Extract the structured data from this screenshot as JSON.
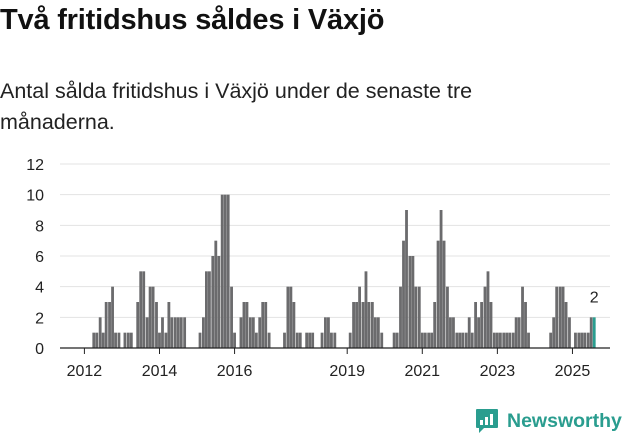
{
  "title": "Två fritidshus såldes i Växjö",
  "subtitle": "Antal sålda fritidshus i Växjö under de senaste tre månaderna.",
  "brand": {
    "name": "Newsworthy"
  },
  "colors": {
    "bar": "#6b6b6d",
    "highlight": "#2a9d8f",
    "grid": "#e3e3e3",
    "axis": "#222222",
    "text": "#222222"
  },
  "chart_data": {
    "type": "bar",
    "title": "",
    "xlabel": "",
    "ylabel": "",
    "ylim": [
      0,
      12
    ],
    "yticks": [
      0,
      2,
      4,
      6,
      8,
      10,
      12
    ],
    "xticks": [
      2012,
      2014,
      2016,
      2019,
      2021,
      2023,
      2025
    ],
    "xlim": [
      2011.35,
      2026.0
    ],
    "grid": true,
    "last_value_label": "2",
    "bar_width_years": 0.075,
    "bars": [
      {
        "x": 2012.25,
        "value": 1
      },
      {
        "x": 2012.33,
        "value": 1
      },
      {
        "x": 2012.42,
        "value": 2
      },
      {
        "x": 2012.5,
        "value": 1
      },
      {
        "x": 2012.58,
        "value": 3
      },
      {
        "x": 2012.67,
        "value": 3
      },
      {
        "x": 2012.75,
        "value": 4
      },
      {
        "x": 2012.83,
        "value": 1
      },
      {
        "x": 2012.92,
        "value": 1
      },
      {
        "x": 2013.08,
        "value": 1
      },
      {
        "x": 2013.17,
        "value": 1
      },
      {
        "x": 2013.25,
        "value": 1
      },
      {
        "x": 2013.42,
        "value": 3
      },
      {
        "x": 2013.5,
        "value": 5
      },
      {
        "x": 2013.58,
        "value": 5
      },
      {
        "x": 2013.67,
        "value": 2
      },
      {
        "x": 2013.75,
        "value": 4
      },
      {
        "x": 2013.83,
        "value": 4
      },
      {
        "x": 2013.92,
        "value": 3
      },
      {
        "x": 2014.0,
        "value": 1
      },
      {
        "x": 2014.08,
        "value": 2
      },
      {
        "x": 2014.17,
        "value": 1
      },
      {
        "x": 2014.25,
        "value": 3
      },
      {
        "x": 2014.33,
        "value": 2
      },
      {
        "x": 2014.42,
        "value": 2
      },
      {
        "x": 2014.5,
        "value": 2
      },
      {
        "x": 2014.58,
        "value": 2
      },
      {
        "x": 2014.67,
        "value": 2
      },
      {
        "x": 2015.08,
        "value": 1
      },
      {
        "x": 2015.17,
        "value": 2
      },
      {
        "x": 2015.25,
        "value": 5
      },
      {
        "x": 2015.33,
        "value": 5
      },
      {
        "x": 2015.42,
        "value": 6
      },
      {
        "x": 2015.5,
        "value": 7
      },
      {
        "x": 2015.58,
        "value": 6
      },
      {
        "x": 2015.67,
        "value": 10
      },
      {
        "x": 2015.75,
        "value": 10
      },
      {
        "x": 2015.83,
        "value": 10
      },
      {
        "x": 2015.92,
        "value": 4
      },
      {
        "x": 2016.0,
        "value": 1
      },
      {
        "x": 2016.17,
        "value": 2
      },
      {
        "x": 2016.25,
        "value": 3
      },
      {
        "x": 2016.33,
        "value": 3
      },
      {
        "x": 2016.42,
        "value": 2
      },
      {
        "x": 2016.5,
        "value": 2
      },
      {
        "x": 2016.58,
        "value": 1
      },
      {
        "x": 2016.67,
        "value": 2
      },
      {
        "x": 2016.75,
        "value": 3
      },
      {
        "x": 2016.83,
        "value": 3
      },
      {
        "x": 2016.92,
        "value": 1
      },
      {
        "x": 2017.33,
        "value": 1
      },
      {
        "x": 2017.42,
        "value": 4
      },
      {
        "x": 2017.5,
        "value": 4
      },
      {
        "x": 2017.58,
        "value": 3
      },
      {
        "x": 2017.67,
        "value": 1
      },
      {
        "x": 2017.75,
        "value": 1
      },
      {
        "x": 2017.92,
        "value": 1
      },
      {
        "x": 2018.0,
        "value": 1
      },
      {
        "x": 2018.08,
        "value": 1
      },
      {
        "x": 2018.33,
        "value": 1
      },
      {
        "x": 2018.42,
        "value": 2
      },
      {
        "x": 2018.5,
        "value": 2
      },
      {
        "x": 2018.58,
        "value": 1
      },
      {
        "x": 2018.67,
        "value": 1
      },
      {
        "x": 2019.08,
        "value": 1
      },
      {
        "x": 2019.17,
        "value": 3
      },
      {
        "x": 2019.25,
        "value": 3
      },
      {
        "x": 2019.33,
        "value": 4
      },
      {
        "x": 2019.42,
        "value": 3
      },
      {
        "x": 2019.5,
        "value": 5
      },
      {
        "x": 2019.58,
        "value": 3
      },
      {
        "x": 2019.67,
        "value": 3
      },
      {
        "x": 2019.75,
        "value": 2
      },
      {
        "x": 2019.83,
        "value": 2
      },
      {
        "x": 2019.92,
        "value": 1
      },
      {
        "x": 2020.25,
        "value": 1
      },
      {
        "x": 2020.33,
        "value": 1
      },
      {
        "x": 2020.42,
        "value": 4
      },
      {
        "x": 2020.5,
        "value": 7
      },
      {
        "x": 2020.58,
        "value": 9
      },
      {
        "x": 2020.67,
        "value": 6
      },
      {
        "x": 2020.75,
        "value": 6
      },
      {
        "x": 2020.83,
        "value": 4
      },
      {
        "x": 2020.92,
        "value": 4
      },
      {
        "x": 2021.0,
        "value": 1
      },
      {
        "x": 2021.08,
        "value": 1
      },
      {
        "x": 2021.17,
        "value": 1
      },
      {
        "x": 2021.25,
        "value": 1
      },
      {
        "x": 2021.33,
        "value": 3
      },
      {
        "x": 2021.42,
        "value": 7
      },
      {
        "x": 2021.5,
        "value": 9
      },
      {
        "x": 2021.58,
        "value": 7
      },
      {
        "x": 2021.67,
        "value": 4
      },
      {
        "x": 2021.75,
        "value": 2
      },
      {
        "x": 2021.83,
        "value": 2
      },
      {
        "x": 2021.92,
        "value": 1
      },
      {
        "x": 2022.0,
        "value": 1
      },
      {
        "x": 2022.08,
        "value": 1
      },
      {
        "x": 2022.17,
        "value": 1
      },
      {
        "x": 2022.25,
        "value": 2
      },
      {
        "x": 2022.33,
        "value": 1
      },
      {
        "x": 2022.42,
        "value": 3
      },
      {
        "x": 2022.5,
        "value": 2
      },
      {
        "x": 2022.58,
        "value": 3
      },
      {
        "x": 2022.67,
        "value": 4
      },
      {
        "x": 2022.75,
        "value": 5
      },
      {
        "x": 2022.83,
        "value": 3
      },
      {
        "x": 2022.92,
        "value": 1
      },
      {
        "x": 2023.0,
        "value": 1
      },
      {
        "x": 2023.08,
        "value": 1
      },
      {
        "x": 2023.17,
        "value": 1
      },
      {
        "x": 2023.25,
        "value": 1
      },
      {
        "x": 2023.33,
        "value": 1
      },
      {
        "x": 2023.42,
        "value": 1
      },
      {
        "x": 2023.5,
        "value": 2
      },
      {
        "x": 2023.58,
        "value": 2
      },
      {
        "x": 2023.67,
        "value": 4
      },
      {
        "x": 2023.75,
        "value": 3
      },
      {
        "x": 2023.83,
        "value": 1
      },
      {
        "x": 2024.42,
        "value": 1
      },
      {
        "x": 2024.5,
        "value": 2
      },
      {
        "x": 2024.58,
        "value": 4
      },
      {
        "x": 2024.67,
        "value": 4
      },
      {
        "x": 2024.75,
        "value": 4
      },
      {
        "x": 2024.83,
        "value": 3
      },
      {
        "x": 2024.92,
        "value": 2
      },
      {
        "x": 2025.08,
        "value": 1
      },
      {
        "x": 2025.17,
        "value": 1
      },
      {
        "x": 2025.25,
        "value": 1
      },
      {
        "x": 2025.33,
        "value": 1
      },
      {
        "x": 2025.42,
        "value": 1
      },
      {
        "x": 2025.5,
        "value": 2
      },
      {
        "x": 2025.58,
        "value": 2,
        "highlight": true
      }
    ]
  }
}
